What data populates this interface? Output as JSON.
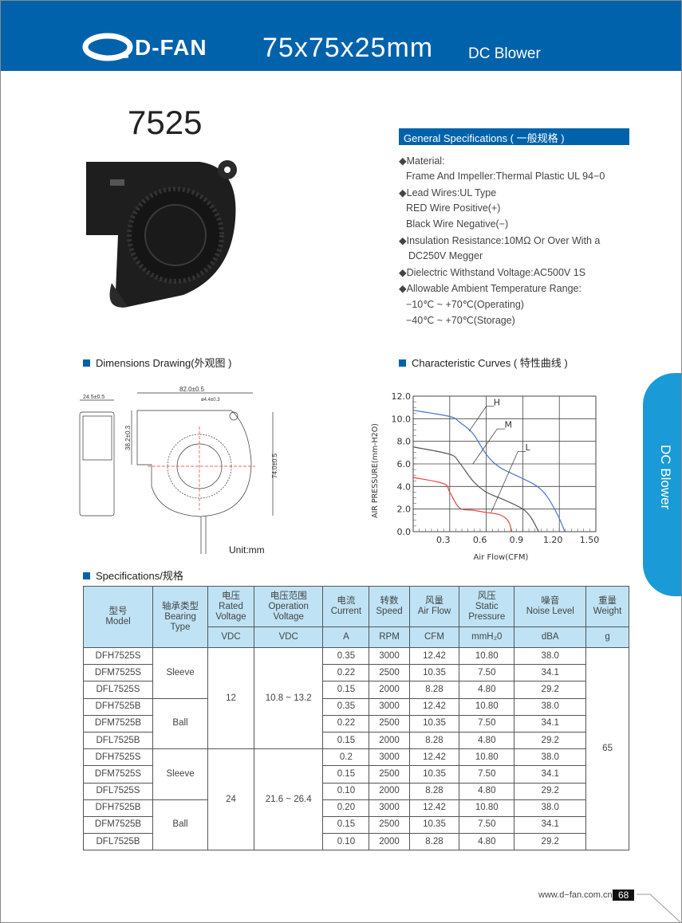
{
  "header": {
    "brand": "D-FAN",
    "size": "75x75x25mm",
    "product": "DC Blower"
  },
  "model": "7525",
  "general": {
    "title": "General Specifications ( 一般规格 )",
    "lines": [
      "◆Material:",
      "Frame And Impeller:Thermal Plastic UL 94−0",
      "◆Lead Wires:UL Type",
      "RED Wire Positive(+)",
      "Black Wire Negative(−)",
      "◆Insulation Resistance:10MΩ  Or Over With a",
      "DC250V Megger",
      "◆Dielectric Withstand Voltage:AC500V 1S",
      "◆Allowable Ambient Temperature Range:",
      "−10℃ ~ +70℃(Operating)",
      "−40℃ ~ +70℃(Storage)"
    ]
  },
  "dimensions": {
    "title": "Dimensions Drawing(外观图 )",
    "width": "82.0±0.5",
    "depth": "24.5±0.5",
    "hole": "ø4.4±0.3",
    "outlet": "38.2±0.3",
    "height": "74.0±0.5",
    "unit": "Unit:mm"
  },
  "curves_title": "Characteristic Curves ( 特性曲线 )",
  "chart_data": {
    "type": "line",
    "xlabel": "Air Flow(CFM)",
    "ylabel": "AIR PRESSURE(mm-H2O)",
    "xlim": [
      0,
      1.5
    ],
    "ylim": [
      0,
      12
    ],
    "grid": true,
    "xticks": [
      "0.3",
      "0.6",
      "0.9",
      "1.20",
      "1.50"
    ],
    "yticks": [
      "0.0",
      "2.0",
      "4.0",
      "6.0",
      "8.0",
      "10.0",
      "12.0"
    ],
    "series": [
      {
        "name": "H",
        "color": "#4a74c9",
        "x": [
          0,
          0.3,
          0.38,
          0.49,
          0.6,
          0.71,
          0.9,
          1.02,
          1.1,
          1.19,
          1.245
        ],
        "y": [
          10.75,
          10.2,
          9.7,
          8.7,
          6.85,
          5.7,
          4.7,
          4.0,
          3.1,
          1.4,
          0
        ]
      },
      {
        "name": "M",
        "color": "#555555",
        "x": [
          0,
          0.3,
          0.38,
          0.49,
          0.6,
          0.75,
          0.9,
          0.97,
          1.03
        ],
        "y": [
          7.5,
          6.85,
          6.1,
          4.5,
          3.5,
          2.8,
          2.0,
          1.2,
          0
        ]
      },
      {
        "name": "L",
        "color": "#e8423a",
        "x": [
          0,
          0.25,
          0.3,
          0.38,
          0.49,
          0.6,
          0.71,
          0.78,
          0.81
        ],
        "y": [
          4.8,
          4.25,
          3.5,
          2.1,
          1.9,
          1.7,
          1.5,
          0.95,
          0
        ]
      }
    ]
  },
  "specs": {
    "title": "Specifications/规格",
    "headers": [
      [
        "型号",
        "Model"
      ],
      [
        "轴承类型",
        "Bearing",
        "Type"
      ],
      [
        "电压",
        "Rated",
        "Voltage"
      ],
      [
        "电压范围",
        "Operation",
        "Voltage"
      ],
      [
        "电流",
        "Current"
      ],
      [
        "转数",
        "Speed"
      ],
      [
        "风量",
        "Air Flow"
      ],
      [
        "风压",
        "Static",
        "Pressure"
      ],
      [
        "噪音",
        "Noise Level"
      ],
      [
        "重量",
        "Weight"
      ]
    ],
    "units": [
      "VDC",
      "VDC",
      "A",
      "RPM",
      "CFM",
      "mmH₂0",
      "dBA",
      "g"
    ],
    "groups": [
      {
        "voltage": "12",
        "range": "10.8 ~ 13.2"
      },
      {
        "voltage": "24",
        "range": "21.6 ~ 26.4"
      }
    ],
    "bearings": [
      "Sleeve",
      "Ball",
      "Sleeve",
      "Ball"
    ],
    "weight": "65",
    "rows": [
      [
        "DFH7525S",
        "0.35",
        "3000",
        "12.42",
        "10.80",
        "38.0"
      ],
      [
        "DFM7525S",
        "0.22",
        "2500",
        "10.35",
        "7.50",
        "34.1"
      ],
      [
        "DFL7525S",
        "0.15",
        "2000",
        "8.28",
        "4.80",
        "29.2"
      ],
      [
        "DFH7525B",
        "0.35",
        "3000",
        "12.42",
        "10.80",
        "38.0"
      ],
      [
        "DFM7525B",
        "0.22",
        "2500",
        "10.35",
        "7.50",
        "34.1"
      ],
      [
        "DFL7525B",
        "0.15",
        "2000",
        "8.28",
        "4.80",
        "29.2"
      ],
      [
        "DFH7525S",
        "0.2",
        "3000",
        "12.42",
        "10.80",
        "38.0"
      ],
      [
        "DFM7525S",
        "0.15",
        "2500",
        "10.35",
        "7.50",
        "34.1"
      ],
      [
        "DFL7525S",
        "0.10",
        "2000",
        "8.28",
        "4.80",
        "29.2"
      ],
      [
        "DFH7525B",
        "0.20",
        "3000",
        "12.42",
        "10.80",
        "38.0"
      ],
      [
        "DFM7525B",
        "0.15",
        "2500",
        "10.35",
        "7.50",
        "34.1"
      ],
      [
        "DFL7525B",
        "0.10",
        "2000",
        "8.28",
        "4.80",
        "29.2"
      ]
    ]
  },
  "footer": {
    "url": "www.d−fan.com.cn",
    "page": "68"
  },
  "colors": {
    "brand": "#0062ab",
    "tab": "#1a9bd7",
    "header_cell": "#bfe3f5"
  }
}
